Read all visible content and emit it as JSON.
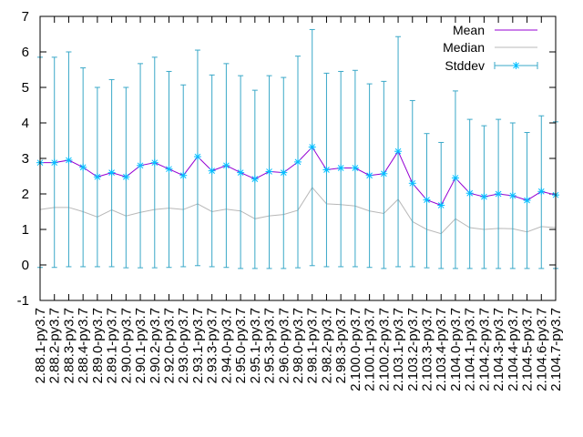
{
  "chart_data": {
    "type": "line",
    "title": "",
    "xlabel": "",
    "ylabel": "",
    "ylim": [
      -1,
      7
    ],
    "yticks": [
      -1,
      0,
      1,
      2,
      3,
      4,
      5,
      6,
      7
    ],
    "grid": false,
    "legend_position": "top-right",
    "categories": [
      "2.88.1-py3.7",
      "2.88.2-py3.7",
      "2.88.3-py3.7",
      "2.88.4-py3.7",
      "2.89.0-py3.7",
      "2.89.1-py3.7",
      "2.90.0-py3.7",
      "2.90.1-py3.7",
      "2.90.2-py3.7",
      "2.92.0-py3.7",
      "2.93.0-py3.7",
      "2.93.1-py3.7",
      "2.93.3-py3.7",
      "2.94.0-py3.7",
      "2.95.0-py3.7",
      "2.95.1-py3.7",
      "2.95.3-py3.7",
      "2.96.0-py3.7",
      "2.98.0-py3.7",
      "2.98.1-py3.7",
      "2.98.2-py3.7",
      "2.98.3-py3.7",
      "2.100.0-py3.7",
      "2.100.1-py3.7",
      "2.100.2-py3.7",
      "2.103.1-py3.7",
      "2.103.2-py3.7",
      "2.103.3-py3.7",
      "2.103.4-py3.7",
      "2.104.0-py3.7",
      "2.104.1-py3.7",
      "2.104.2-py3.7",
      "2.104.3-py3.7",
      "2.104.4-py3.7",
      "2.104.5-py3.7",
      "2.104.6-py3.7",
      "2.104.7-py3.7"
    ],
    "series": [
      {
        "name": "Mean",
        "color": "#9400d3",
        "values": [
          2.88,
          2.88,
          2.95,
          2.75,
          2.48,
          2.6,
          2.48,
          2.8,
          2.88,
          2.7,
          2.52,
          3.05,
          2.65,
          2.8,
          2.6,
          2.42,
          2.63,
          2.6,
          2.9,
          3.32,
          2.68,
          2.73,
          2.73,
          2.52,
          2.57,
          3.2,
          2.3,
          1.83,
          1.68,
          2.45,
          2.02,
          1.92,
          2.0,
          1.95,
          1.82,
          2.07,
          1.97
        ]
      },
      {
        "name": "Median",
        "color": "#b8b8b8",
        "values": [
          1.56,
          1.62,
          1.62,
          1.5,
          1.35,
          1.55,
          1.38,
          1.48,
          1.56,
          1.6,
          1.56,
          1.72,
          1.5,
          1.57,
          1.52,
          1.3,
          1.38,
          1.42,
          1.54,
          2.18,
          1.72,
          1.7,
          1.66,
          1.52,
          1.45,
          1.85,
          1.22,
          1.0,
          0.88,
          1.3,
          1.05,
          1.0,
          1.03,
          1.02,
          0.93,
          1.08,
          1.05
        ]
      },
      {
        "name": "Stddev",
        "color": "#3aa8c8",
        "marker_color": "#00bfff",
        "mean": [
          2.88,
          2.88,
          2.95,
          2.75,
          2.48,
          2.6,
          2.48,
          2.8,
          2.88,
          2.7,
          2.52,
          3.05,
          2.65,
          2.8,
          2.6,
          2.42,
          2.63,
          2.6,
          2.9,
          3.32,
          2.68,
          2.73,
          2.73,
          2.52,
          2.57,
          3.2,
          2.3,
          1.83,
          1.68,
          2.45,
          2.02,
          1.92,
          2.0,
          1.95,
          1.82,
          2.07,
          1.97
        ],
        "low": [
          -0.07,
          -0.07,
          -0.05,
          -0.05,
          -0.05,
          -0.05,
          -0.08,
          -0.08,
          -0.08,
          -0.07,
          -0.05,
          -0.02,
          -0.05,
          -0.07,
          -0.1,
          -0.1,
          -0.1,
          -0.1,
          -0.08,
          -0.02,
          -0.05,
          -0.05,
          -0.05,
          -0.07,
          -0.1,
          -0.05,
          -0.05,
          -0.08,
          -0.1,
          -0.1,
          -0.1,
          -0.1,
          -0.1,
          -0.1,
          -0.1,
          -0.1,
          -0.1
        ],
        "high": [
          5.85,
          5.85,
          6.0,
          5.55,
          5.0,
          5.22,
          5.0,
          5.67,
          5.85,
          5.45,
          5.07,
          6.05,
          5.35,
          5.67,
          5.33,
          4.92,
          5.33,
          5.28,
          5.88,
          6.63,
          5.4,
          5.45,
          5.48,
          5.1,
          5.17,
          6.43,
          4.63,
          3.7,
          3.45,
          4.9,
          4.1,
          3.92,
          4.1,
          4.0,
          3.73,
          4.2,
          4.03
        ]
      }
    ]
  }
}
